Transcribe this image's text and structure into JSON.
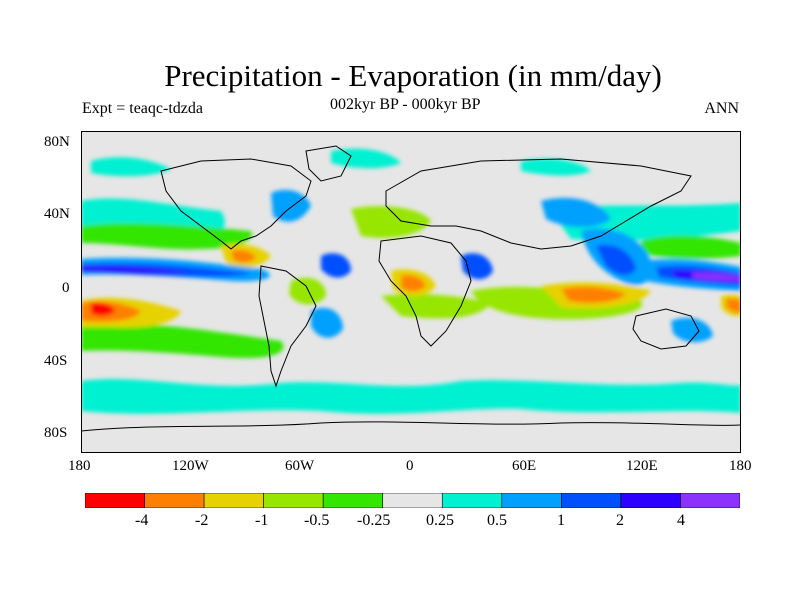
{
  "title": "Precipitation - Evaporation (in mm/day)",
  "subtitle_left": "Expt = teaqc-tdzda",
  "subtitle_center": "002kyr BP - 000kyr BP",
  "subtitle_right": "ANN",
  "lat_labels": [
    "80N",
    "40N",
    "0",
    "40S",
    "80S"
  ],
  "lon_labels": [
    "180",
    "120W",
    "60W",
    "0",
    "60E",
    "120E",
    "180"
  ],
  "colorbar": {
    "colors": [
      "#ff0000",
      "#ff8000",
      "#e6d200",
      "#96e600",
      "#32e600",
      "#e6e6e6",
      "#00f0d2",
      "#00a0ff",
      "#0050ff",
      "#2d00ff",
      "#8c32ff"
    ],
    "labels": [
      "-4",
      "-2",
      "-1",
      "-0.5",
      "-0.25",
      "0.25",
      "0.5",
      "1",
      "2",
      "4"
    ]
  },
  "palette": {
    "neutral": "#e6e6e6",
    "red": "#ff0000",
    "orange": "#ff8000",
    "yellow": "#e6d200",
    "lgreen": "#96e600",
    "green": "#32e600",
    "cyan": "#00f0d2",
    "lblue": "#00a0ff",
    "blue": "#0050ff",
    "dblue": "#2d00ff",
    "purple": "#8c32ff",
    "coast": "#000000"
  }
}
